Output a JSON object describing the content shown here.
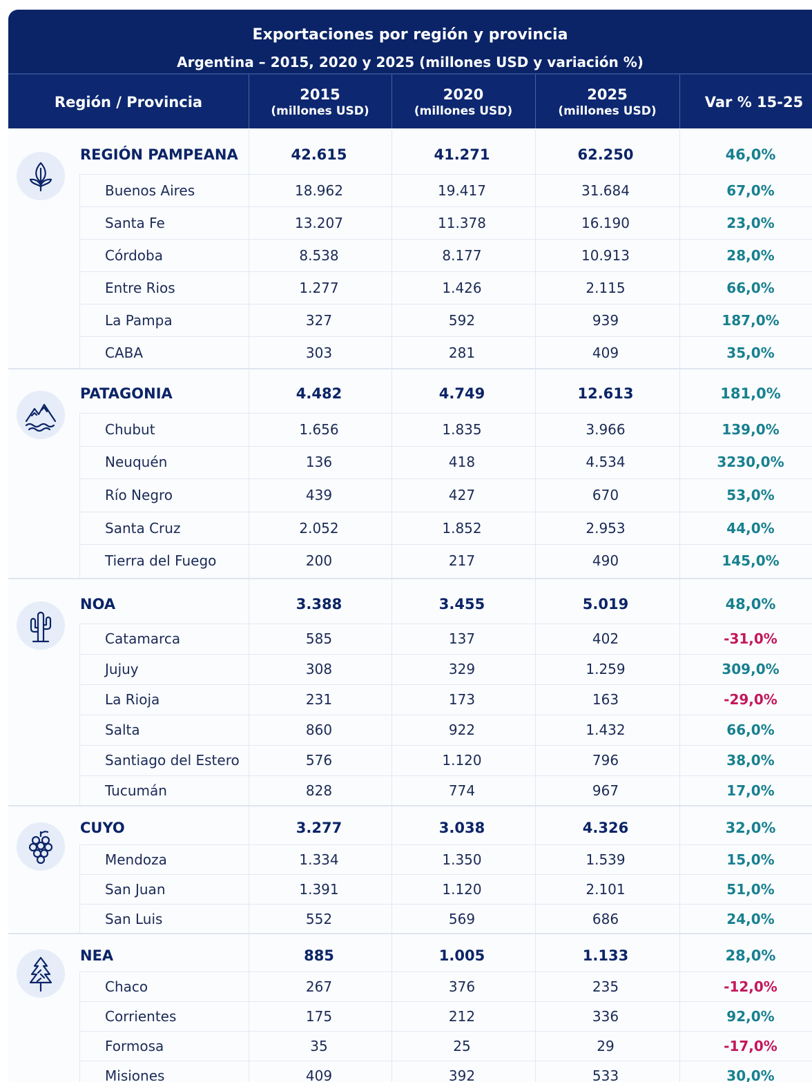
{
  "header": {
    "title": "Exportaciones por región y provincia",
    "subtitle": "Argentina – 2015, 2020 y 2025 (millones USD y variación %)"
  },
  "table": {
    "columns": [
      {
        "label": "Región / Provincia"
      },
      {
        "label": "2015",
        "sub": "(millones USD)"
      },
      {
        "label": "2020",
        "sub": "(millones USD)"
      },
      {
        "label": "2025",
        "sub": "(millones USD)"
      },
      {
        "label": "Var % 15-25"
      }
    ],
    "sections": [
      {
        "region": [
          "REGIÓN PAMPEANA",
          "42.615",
          "41.271",
          "62.250",
          "46,0%"
        ],
        "rows": [
          [
            "Buenos Aires",
            "18.962",
            "19.417",
            "31.684",
            "67,0%"
          ],
          [
            "Santa Fe",
            "13.207",
            "11.378",
            "16.190",
            "23,0%"
          ],
          [
            "Córdoba",
            "8.538",
            "8.177",
            "10.913",
            "28,0%"
          ],
          [
            "Entre Rios",
            "1.277",
            "1.426",
            "2.115",
            "66,0%"
          ],
          [
            "La Pampa",
            "327",
            "592",
            "939",
            "187,0%"
          ],
          [
            "CABA",
            "303",
            "281",
            "409",
            "35,0%"
          ]
        ]
      },
      {
        "region": [
          "PATAGONIA",
          "4.482",
          "4.749",
          "12.613",
          "181,0%"
        ],
        "rows": [
          [
            "Chubut",
            "1.656",
            "1.835",
            "3.966",
            "139,0%"
          ],
          [
            "Neuquén",
            "136",
            "418",
            "4.534",
            "3230,0%"
          ],
          [
            "Río Negro",
            "439",
            "427",
            "670",
            "53,0%"
          ],
          [
            "Santa Cruz",
            "2.052",
            "1.852",
            "2.953",
            "44,0%"
          ],
          [
            "Tierra del Fuego",
            "200",
            "217",
            "490",
            "145,0%"
          ]
        ]
      },
      {
        "region": [
          "NOA",
          "3.388",
          "3.455",
          "5.019",
          "48,0%"
        ],
        "rows": [
          [
            "Catamarca",
            "585",
            "137",
            "402",
            "-31,0%"
          ],
          [
            "Jujuy",
            "308",
            "329",
            "1.259",
            "309,0%"
          ],
          [
            "La Rioja",
            "231",
            "173",
            "163",
            "-29,0%"
          ],
          [
            "Salta",
            "860",
            "922",
            "1.432",
            "66,0%"
          ],
          [
            "Santiago del Estero",
            "576",
            "1.120",
            "796",
            "38,0%"
          ],
          [
            "Tucumán",
            "828",
            "774",
            "967",
            "17,0%"
          ]
        ]
      },
      {
        "region": [
          "CUYO",
          "3.277",
          "3.038",
          "4.326",
          "32,0%"
        ],
        "rows": [
          [
            "Mendoza",
            "1.334",
            "1.350",
            "1.539",
            "15,0%"
          ],
          [
            "San Juan",
            "1.391",
            "1.120",
            "2.101",
            "51,0%"
          ],
          [
            "San Luis",
            "552",
            "569",
            "686",
            "24,0%"
          ]
        ]
      },
      {
        "region": [
          "NEA",
          "885",
          "1.005",
          "1.133",
          "28,0%"
        ],
        "rows": [
          [
            "Chaco",
            "267",
            "376",
            "235",
            "-12,0%"
          ],
          [
            "Corrientes",
            "175",
            "212",
            "336",
            "92,0%"
          ],
          [
            "Formosa",
            "35",
            "25",
            "29",
            "-17,0%"
          ],
          [
            "Misiones",
            "409",
            "392",
            "533",
            "30,0%"
          ]
        ]
      }
    ]
  }
}
